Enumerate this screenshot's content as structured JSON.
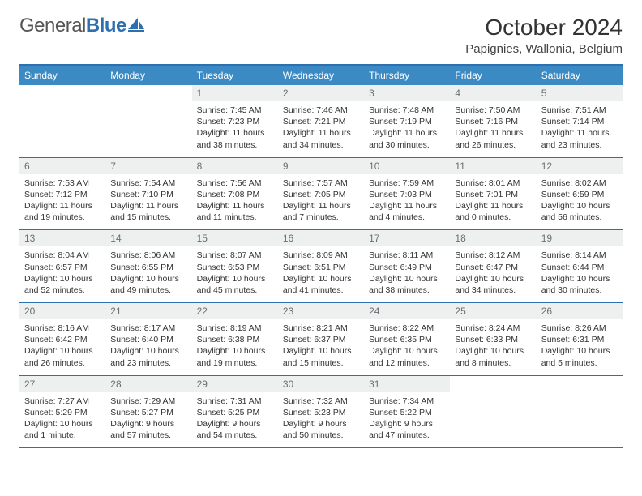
{
  "brand": {
    "part1": "General",
    "part2": "Blue"
  },
  "title": "October 2024",
  "location": "Papignies, Wallonia, Belgium",
  "colors": {
    "header_bg": "#3b8ac4",
    "header_text": "#ffffff",
    "border": "#2e6fb0",
    "daynum_bg": "#eef0f0",
    "daynum_text": "#6a6f74",
    "body_text": "#333333",
    "brand_blue": "#2e6fb0"
  },
  "day_headers": [
    "Sunday",
    "Monday",
    "Tuesday",
    "Wednesday",
    "Thursday",
    "Friday",
    "Saturday"
  ],
  "weeks": [
    [
      {
        "n": "",
        "sr": "",
        "ss": "",
        "dl": ""
      },
      {
        "n": "",
        "sr": "",
        "ss": "",
        "dl": ""
      },
      {
        "n": "1",
        "sr": "Sunrise: 7:45 AM",
        "ss": "Sunset: 7:23 PM",
        "dl": "Daylight: 11 hours and 38 minutes."
      },
      {
        "n": "2",
        "sr": "Sunrise: 7:46 AM",
        "ss": "Sunset: 7:21 PM",
        "dl": "Daylight: 11 hours and 34 minutes."
      },
      {
        "n": "3",
        "sr": "Sunrise: 7:48 AM",
        "ss": "Sunset: 7:19 PM",
        "dl": "Daylight: 11 hours and 30 minutes."
      },
      {
        "n": "4",
        "sr": "Sunrise: 7:50 AM",
        "ss": "Sunset: 7:16 PM",
        "dl": "Daylight: 11 hours and 26 minutes."
      },
      {
        "n": "5",
        "sr": "Sunrise: 7:51 AM",
        "ss": "Sunset: 7:14 PM",
        "dl": "Daylight: 11 hours and 23 minutes."
      }
    ],
    [
      {
        "n": "6",
        "sr": "Sunrise: 7:53 AM",
        "ss": "Sunset: 7:12 PM",
        "dl": "Daylight: 11 hours and 19 minutes."
      },
      {
        "n": "7",
        "sr": "Sunrise: 7:54 AM",
        "ss": "Sunset: 7:10 PM",
        "dl": "Daylight: 11 hours and 15 minutes."
      },
      {
        "n": "8",
        "sr": "Sunrise: 7:56 AM",
        "ss": "Sunset: 7:08 PM",
        "dl": "Daylight: 11 hours and 11 minutes."
      },
      {
        "n": "9",
        "sr": "Sunrise: 7:57 AM",
        "ss": "Sunset: 7:05 PM",
        "dl": "Daylight: 11 hours and 7 minutes."
      },
      {
        "n": "10",
        "sr": "Sunrise: 7:59 AM",
        "ss": "Sunset: 7:03 PM",
        "dl": "Daylight: 11 hours and 4 minutes."
      },
      {
        "n": "11",
        "sr": "Sunrise: 8:01 AM",
        "ss": "Sunset: 7:01 PM",
        "dl": "Daylight: 11 hours and 0 minutes."
      },
      {
        "n": "12",
        "sr": "Sunrise: 8:02 AM",
        "ss": "Sunset: 6:59 PM",
        "dl": "Daylight: 10 hours and 56 minutes."
      }
    ],
    [
      {
        "n": "13",
        "sr": "Sunrise: 8:04 AM",
        "ss": "Sunset: 6:57 PM",
        "dl": "Daylight: 10 hours and 52 minutes."
      },
      {
        "n": "14",
        "sr": "Sunrise: 8:06 AM",
        "ss": "Sunset: 6:55 PM",
        "dl": "Daylight: 10 hours and 49 minutes."
      },
      {
        "n": "15",
        "sr": "Sunrise: 8:07 AM",
        "ss": "Sunset: 6:53 PM",
        "dl": "Daylight: 10 hours and 45 minutes."
      },
      {
        "n": "16",
        "sr": "Sunrise: 8:09 AM",
        "ss": "Sunset: 6:51 PM",
        "dl": "Daylight: 10 hours and 41 minutes."
      },
      {
        "n": "17",
        "sr": "Sunrise: 8:11 AM",
        "ss": "Sunset: 6:49 PM",
        "dl": "Daylight: 10 hours and 38 minutes."
      },
      {
        "n": "18",
        "sr": "Sunrise: 8:12 AM",
        "ss": "Sunset: 6:47 PM",
        "dl": "Daylight: 10 hours and 34 minutes."
      },
      {
        "n": "19",
        "sr": "Sunrise: 8:14 AM",
        "ss": "Sunset: 6:44 PM",
        "dl": "Daylight: 10 hours and 30 minutes."
      }
    ],
    [
      {
        "n": "20",
        "sr": "Sunrise: 8:16 AM",
        "ss": "Sunset: 6:42 PM",
        "dl": "Daylight: 10 hours and 26 minutes."
      },
      {
        "n": "21",
        "sr": "Sunrise: 8:17 AM",
        "ss": "Sunset: 6:40 PM",
        "dl": "Daylight: 10 hours and 23 minutes."
      },
      {
        "n": "22",
        "sr": "Sunrise: 8:19 AM",
        "ss": "Sunset: 6:38 PM",
        "dl": "Daylight: 10 hours and 19 minutes."
      },
      {
        "n": "23",
        "sr": "Sunrise: 8:21 AM",
        "ss": "Sunset: 6:37 PM",
        "dl": "Daylight: 10 hours and 15 minutes."
      },
      {
        "n": "24",
        "sr": "Sunrise: 8:22 AM",
        "ss": "Sunset: 6:35 PM",
        "dl": "Daylight: 10 hours and 12 minutes."
      },
      {
        "n": "25",
        "sr": "Sunrise: 8:24 AM",
        "ss": "Sunset: 6:33 PM",
        "dl": "Daylight: 10 hours and 8 minutes."
      },
      {
        "n": "26",
        "sr": "Sunrise: 8:26 AM",
        "ss": "Sunset: 6:31 PM",
        "dl": "Daylight: 10 hours and 5 minutes."
      }
    ],
    [
      {
        "n": "27",
        "sr": "Sunrise: 7:27 AM",
        "ss": "Sunset: 5:29 PM",
        "dl": "Daylight: 10 hours and 1 minute."
      },
      {
        "n": "28",
        "sr": "Sunrise: 7:29 AM",
        "ss": "Sunset: 5:27 PM",
        "dl": "Daylight: 9 hours and 57 minutes."
      },
      {
        "n": "29",
        "sr": "Sunrise: 7:31 AM",
        "ss": "Sunset: 5:25 PM",
        "dl": "Daylight: 9 hours and 54 minutes."
      },
      {
        "n": "30",
        "sr": "Sunrise: 7:32 AM",
        "ss": "Sunset: 5:23 PM",
        "dl": "Daylight: 9 hours and 50 minutes."
      },
      {
        "n": "31",
        "sr": "Sunrise: 7:34 AM",
        "ss": "Sunset: 5:22 PM",
        "dl": "Daylight: 9 hours and 47 minutes."
      },
      {
        "n": "",
        "sr": "",
        "ss": "",
        "dl": ""
      },
      {
        "n": "",
        "sr": "",
        "ss": "",
        "dl": ""
      }
    ]
  ]
}
